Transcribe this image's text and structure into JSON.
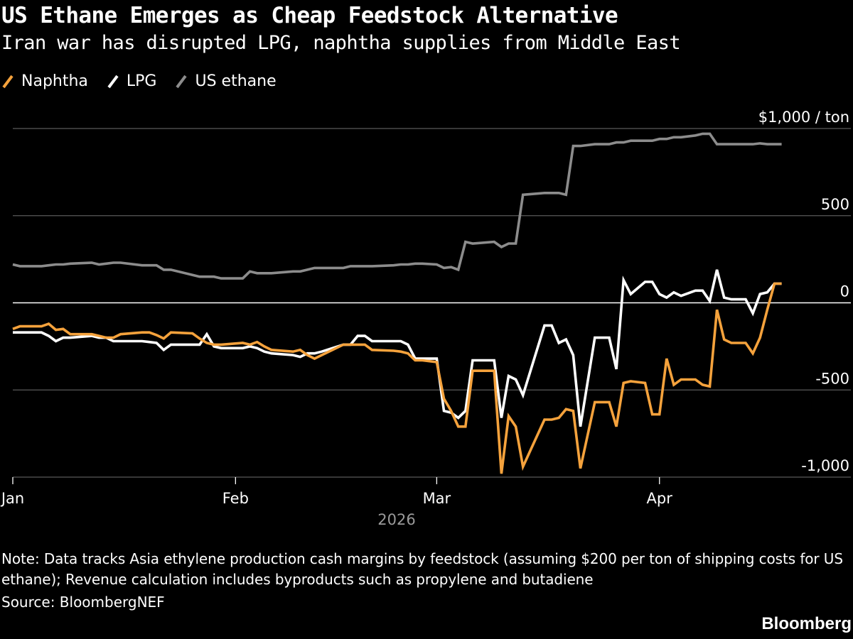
{
  "title": "US Ethane Emerges as Cheap Feedstock Alternative",
  "subtitle": "Iran war has disrupted LPG, naphtha supplies from Middle East",
  "legend": [
    {
      "label": "Naphtha",
      "color": "#f5a23c"
    },
    {
      "label": "LPG",
      "color": "#ffffff"
    },
    {
      "label": "US ethane",
      "color": "#8c8c8c"
    }
  ],
  "note": "Note: Data tracks Asia ethylene production cash margins by feedstock (assuming $200 per ton of shipping costs for US ethane); Revenue calculation includes byproducts such as propylene and butadiene",
  "source": "Source: BloombergNEF",
  "brand": "Bloomberg",
  "chart_data": {
    "type": "line",
    "unit_label": "$1,000 / ton",
    "year_label": "2026",
    "ylim": [
      -1000,
      1000
    ],
    "yticks": [
      {
        "value": 1000,
        "label": "$1,000 / ton"
      },
      {
        "value": 500,
        "label": "500"
      },
      {
        "value": 0,
        "label": "0"
      },
      {
        "value": -500,
        "label": "-500"
      },
      {
        "value": -1000,
        "label": "-1,000"
      }
    ],
    "xlim": [
      "2026-01-01",
      "2026-04-22"
    ],
    "xticks": [
      {
        "date": "2026-01-01",
        "label": "Jan"
      },
      {
        "date": "2026-02-01",
        "label": "Feb"
      },
      {
        "date": "2026-03-01",
        "label": "Mar"
      },
      {
        "date": "2026-04-01",
        "label": "Apr"
      }
    ],
    "grid": true,
    "legend_position": "top-left",
    "series": [
      {
        "name": "Naphtha",
        "color": "#f5a23c",
        "points": [
          [
            "2026-01-01",
            -150
          ],
          [
            "2026-01-02",
            -135
          ],
          [
            "2026-01-05",
            -135
          ],
          [
            "2026-01-06",
            -120
          ],
          [
            "2026-01-07",
            -155
          ],
          [
            "2026-01-08",
            -150
          ],
          [
            "2026-01-09",
            -180
          ],
          [
            "2026-01-12",
            -180
          ],
          [
            "2026-01-13",
            -190
          ],
          [
            "2026-01-14",
            -200
          ],
          [
            "2026-01-15",
            -200
          ],
          [
            "2026-01-16",
            -180
          ],
          [
            "2026-01-19",
            -170
          ],
          [
            "2026-01-20",
            -170
          ],
          [
            "2026-01-21",
            -185
          ],
          [
            "2026-01-22",
            -205
          ],
          [
            "2026-01-23",
            -170
          ],
          [
            "2026-01-26",
            -175
          ],
          [
            "2026-01-27",
            -205
          ],
          [
            "2026-01-28",
            -230
          ],
          [
            "2026-01-29",
            -240
          ],
          [
            "2026-01-30",
            -240
          ],
          [
            "2026-02-02",
            -230
          ],
          [
            "2026-02-03",
            -240
          ],
          [
            "2026-02-04",
            -225
          ],
          [
            "2026-02-05",
            -250
          ],
          [
            "2026-02-06",
            -270
          ],
          [
            "2026-02-09",
            -280
          ],
          [
            "2026-02-10",
            -270
          ],
          [
            "2026-02-11",
            -300
          ],
          [
            "2026-02-12",
            -320
          ],
          [
            "2026-02-13",
            -300
          ],
          [
            "2026-02-16",
            -240
          ],
          [
            "2026-02-17",
            -240
          ],
          [
            "2026-02-18",
            -240
          ],
          [
            "2026-02-19",
            -240
          ],
          [
            "2026-02-20",
            -270
          ],
          [
            "2026-02-23",
            -275
          ],
          [
            "2026-02-24",
            -280
          ],
          [
            "2026-02-25",
            -290
          ],
          [
            "2026-02-26",
            -330
          ],
          [
            "2026-02-27",
            -330
          ],
          [
            "2026-03-01",
            -340
          ],
          [
            "2026-03-02",
            -550
          ],
          [
            "2026-03-03",
            -620
          ],
          [
            "2026-03-04",
            -710
          ],
          [
            "2026-03-05",
            -710
          ],
          [
            "2026-03-06",
            -390
          ],
          [
            "2026-03-09",
            -390
          ],
          [
            "2026-03-10",
            -980
          ],
          [
            "2026-03-11",
            -650
          ],
          [
            "2026-03-12",
            -710
          ],
          [
            "2026-03-13",
            -940
          ],
          [
            "2026-03-16",
            -670
          ],
          [
            "2026-03-17",
            -670
          ],
          [
            "2026-03-18",
            -660
          ],
          [
            "2026-03-19",
            -610
          ],
          [
            "2026-03-20",
            -620
          ],
          [
            "2026-03-21",
            -950
          ],
          [
            "2026-03-23",
            -570
          ],
          [
            "2026-03-24",
            -570
          ],
          [
            "2026-03-25",
            -570
          ],
          [
            "2026-03-26",
            -710
          ],
          [
            "2026-03-27",
            -460
          ],
          [
            "2026-03-28",
            -450
          ],
          [
            "2026-03-30",
            -460
          ],
          [
            "2026-03-31",
            -640
          ],
          [
            "2026-04-01",
            -640
          ],
          [
            "2026-04-02",
            -320
          ],
          [
            "2026-04-03",
            -470
          ],
          [
            "2026-04-04",
            -440
          ],
          [
            "2026-04-06",
            -440
          ],
          [
            "2026-04-07",
            -470
          ],
          [
            "2026-04-08",
            -480
          ],
          [
            "2026-04-09",
            -40
          ],
          [
            "2026-04-10",
            -210
          ],
          [
            "2026-04-11",
            -230
          ],
          [
            "2026-04-13",
            -230
          ],
          [
            "2026-04-14",
            -290
          ],
          [
            "2026-04-15",
            -200
          ],
          [
            "2026-04-16",
            -40
          ],
          [
            "2026-04-17",
            110
          ],
          [
            "2026-04-18",
            110
          ]
        ]
      },
      {
        "name": "LPG",
        "color": "#ffffff",
        "points": [
          [
            "2026-01-01",
            -170
          ],
          [
            "2026-01-05",
            -170
          ],
          [
            "2026-01-06",
            -190
          ],
          [
            "2026-01-07",
            -220
          ],
          [
            "2026-01-08",
            -200
          ],
          [
            "2026-01-09",
            -200
          ],
          [
            "2026-01-12",
            -190
          ],
          [
            "2026-01-13",
            -200
          ],
          [
            "2026-01-14",
            -200
          ],
          [
            "2026-01-15",
            -220
          ],
          [
            "2026-01-16",
            -220
          ],
          [
            "2026-01-19",
            -220
          ],
          [
            "2026-01-20",
            -225
          ],
          [
            "2026-01-21",
            -230
          ],
          [
            "2026-01-22",
            -270
          ],
          [
            "2026-01-23",
            -240
          ],
          [
            "2026-01-26",
            -240
          ],
          [
            "2026-01-27",
            -240
          ],
          [
            "2026-01-28",
            -180
          ],
          [
            "2026-01-29",
            -250
          ],
          [
            "2026-01-30",
            -260
          ],
          [
            "2026-02-02",
            -260
          ],
          [
            "2026-02-03",
            -250
          ],
          [
            "2026-02-04",
            -260
          ],
          [
            "2026-02-05",
            -280
          ],
          [
            "2026-02-06",
            -290
          ],
          [
            "2026-02-09",
            -300
          ],
          [
            "2026-02-10",
            -310
          ],
          [
            "2026-02-11",
            -290
          ],
          [
            "2026-02-12",
            -290
          ],
          [
            "2026-02-13",
            -280
          ],
          [
            "2026-02-16",
            -240
          ],
          [
            "2026-02-17",
            -240
          ],
          [
            "2026-02-18",
            -190
          ],
          [
            "2026-02-19",
            -190
          ],
          [
            "2026-02-20",
            -220
          ],
          [
            "2026-02-23",
            -220
          ],
          [
            "2026-02-24",
            -220
          ],
          [
            "2026-02-25",
            -240
          ],
          [
            "2026-02-26",
            -320
          ],
          [
            "2026-02-27",
            -320
          ],
          [
            "2026-03-01",
            -320
          ],
          [
            "2026-03-02",
            -620
          ],
          [
            "2026-03-03",
            -630
          ],
          [
            "2026-03-04",
            -660
          ],
          [
            "2026-03-05",
            -620
          ],
          [
            "2026-03-06",
            -330
          ],
          [
            "2026-03-09",
            -330
          ],
          [
            "2026-03-10",
            -660
          ],
          [
            "2026-03-11",
            -420
          ],
          [
            "2026-03-12",
            -440
          ],
          [
            "2026-03-13",
            -530
          ],
          [
            "2026-03-16",
            -130
          ],
          [
            "2026-03-17",
            -130
          ],
          [
            "2026-03-18",
            -230
          ],
          [
            "2026-03-19",
            -210
          ],
          [
            "2026-03-20",
            -300
          ],
          [
            "2026-03-21",
            -710
          ],
          [
            "2026-03-23",
            -200
          ],
          [
            "2026-03-24",
            -200
          ],
          [
            "2026-03-25",
            -200
          ],
          [
            "2026-03-26",
            -380
          ],
          [
            "2026-03-27",
            130
          ],
          [
            "2026-03-28",
            50
          ],
          [
            "2026-03-30",
            120
          ],
          [
            "2026-03-31",
            120
          ],
          [
            "2026-04-01",
            50
          ],
          [
            "2026-04-02",
            30
          ],
          [
            "2026-04-03",
            60
          ],
          [
            "2026-04-04",
            40
          ],
          [
            "2026-04-06",
            70
          ],
          [
            "2026-04-07",
            70
          ],
          [
            "2026-04-08",
            10
          ],
          [
            "2026-04-09",
            190
          ],
          [
            "2026-04-10",
            30
          ],
          [
            "2026-04-11",
            20
          ],
          [
            "2026-04-13",
            20
          ],
          [
            "2026-04-14",
            -60
          ],
          [
            "2026-04-15",
            50
          ],
          [
            "2026-04-16",
            60
          ],
          [
            "2026-04-17",
            110
          ],
          [
            "2026-04-18",
            110
          ]
        ]
      },
      {
        "name": "US ethane",
        "color": "#8c8c8c",
        "points": [
          [
            "2026-01-01",
            220
          ],
          [
            "2026-01-02",
            210
          ],
          [
            "2026-01-05",
            210
          ],
          [
            "2026-01-06",
            215
          ],
          [
            "2026-01-07",
            220
          ],
          [
            "2026-01-08",
            220
          ],
          [
            "2026-01-09",
            225
          ],
          [
            "2026-01-12",
            230
          ],
          [
            "2026-01-13",
            220
          ],
          [
            "2026-01-14",
            225
          ],
          [
            "2026-01-15",
            230
          ],
          [
            "2026-01-16",
            230
          ],
          [
            "2026-01-19",
            215
          ],
          [
            "2026-01-20",
            215
          ],
          [
            "2026-01-21",
            215
          ],
          [
            "2026-01-22",
            190
          ],
          [
            "2026-01-23",
            190
          ],
          [
            "2026-01-26",
            160
          ],
          [
            "2026-01-27",
            150
          ],
          [
            "2026-01-28",
            150
          ],
          [
            "2026-01-29",
            150
          ],
          [
            "2026-01-30",
            140
          ],
          [
            "2026-02-02",
            140
          ],
          [
            "2026-02-03",
            180
          ],
          [
            "2026-02-04",
            170
          ],
          [
            "2026-02-05",
            170
          ],
          [
            "2026-02-06",
            170
          ],
          [
            "2026-02-09",
            180
          ],
          [
            "2026-02-10",
            180
          ],
          [
            "2026-02-11",
            190
          ],
          [
            "2026-02-12",
            200
          ],
          [
            "2026-02-13",
            200
          ],
          [
            "2026-02-16",
            200
          ],
          [
            "2026-02-17",
            210
          ],
          [
            "2026-02-18",
            210
          ],
          [
            "2026-02-19",
            210
          ],
          [
            "2026-02-20",
            210
          ],
          [
            "2026-02-23",
            215
          ],
          [
            "2026-02-24",
            220
          ],
          [
            "2026-02-25",
            220
          ],
          [
            "2026-02-26",
            225
          ],
          [
            "2026-02-27",
            225
          ],
          [
            "2026-03-01",
            220
          ],
          [
            "2026-03-02",
            200
          ],
          [
            "2026-03-03",
            205
          ],
          [
            "2026-03-04",
            190
          ],
          [
            "2026-03-05",
            350
          ],
          [
            "2026-03-06",
            340
          ],
          [
            "2026-03-09",
            350
          ],
          [
            "2026-03-10",
            320
          ],
          [
            "2026-03-11",
            340
          ],
          [
            "2026-03-12",
            340
          ],
          [
            "2026-03-13",
            620
          ],
          [
            "2026-03-16",
            630
          ],
          [
            "2026-03-17",
            630
          ],
          [
            "2026-03-18",
            630
          ],
          [
            "2026-03-19",
            620
          ],
          [
            "2026-03-20",
            900
          ],
          [
            "2026-03-21",
            900
          ],
          [
            "2026-03-23",
            910
          ],
          [
            "2026-03-24",
            910
          ],
          [
            "2026-03-25",
            910
          ],
          [
            "2026-03-26",
            920
          ],
          [
            "2026-03-27",
            920
          ],
          [
            "2026-03-28",
            930
          ],
          [
            "2026-03-30",
            930
          ],
          [
            "2026-03-31",
            930
          ],
          [
            "2026-04-01",
            940
          ],
          [
            "2026-04-02",
            940
          ],
          [
            "2026-04-03",
            950
          ],
          [
            "2026-04-04",
            950
          ],
          [
            "2026-04-06",
            960
          ],
          [
            "2026-04-07",
            970
          ],
          [
            "2026-04-08",
            970
          ],
          [
            "2026-04-09",
            910
          ],
          [
            "2026-04-10",
            910
          ],
          [
            "2026-04-11",
            910
          ],
          [
            "2026-04-13",
            910
          ],
          [
            "2026-04-14",
            910
          ],
          [
            "2026-04-15",
            915
          ],
          [
            "2026-04-16",
            910
          ],
          [
            "2026-04-17",
            910
          ],
          [
            "2026-04-18",
            910
          ]
        ]
      }
    ]
  }
}
